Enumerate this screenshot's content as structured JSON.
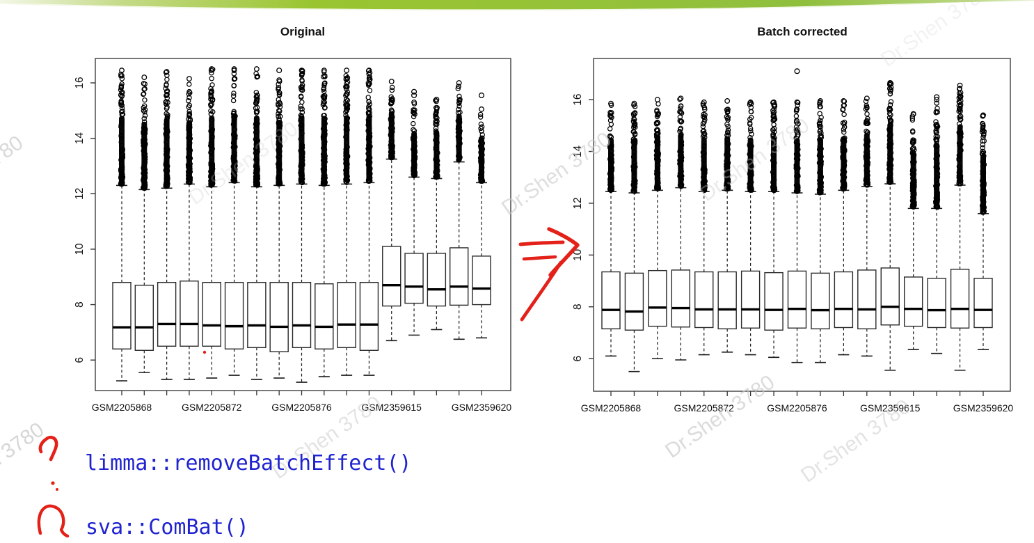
{
  "page": {
    "accent_green": "#96c23f",
    "annotation_red": "#e32119",
    "code_blue": "#1f23d0",
    "watermark_text": "Dr.Shen 3780"
  },
  "code": {
    "line1": "limma::removeBatchEffect()",
    "line2": "sva::ComBat()"
  },
  "chart_data": [
    {
      "type": "boxplot",
      "title": "Original",
      "grid": false,
      "y_ticks": [
        6,
        8,
        10,
        12,
        14,
        16
      ],
      "ylim": [
        4.9,
        16.88
      ],
      "x_labels": {
        "positions": [
          0,
          4,
          8,
          12,
          16
        ],
        "labels": [
          "GSM2205868",
          "GSM2205872",
          "GSM2205876",
          "GSM2359615",
          "GSM2359620"
        ]
      },
      "samples": [
        {
          "lo": 5.25,
          "q1": 6.4,
          "med": 7.18,
          "q3": 8.8,
          "hi": 12.3,
          "omin": 12.35,
          "omax": 16.45
        },
        {
          "lo": 5.55,
          "q1": 6.35,
          "med": 7.18,
          "q3": 8.7,
          "hi": 12.15,
          "omin": 12.2,
          "omax": 16.2
        },
        {
          "lo": 5.3,
          "q1": 6.5,
          "med": 7.3,
          "q3": 8.8,
          "hi": 12.2,
          "omin": 12.25,
          "omax": 16.4
        },
        {
          "lo": 5.3,
          "q1": 6.5,
          "med": 7.3,
          "q3": 8.85,
          "hi": 12.35,
          "omin": 12.4,
          "omax": 16.15
        },
        {
          "lo": 5.35,
          "q1": 6.5,
          "med": 7.25,
          "q3": 8.8,
          "hi": 12.25,
          "omin": 12.3,
          "omax": 16.5
        },
        {
          "lo": 5.45,
          "q1": 6.4,
          "med": 7.22,
          "q3": 8.8,
          "hi": 12.4,
          "omin": 12.45,
          "omax": 16.5
        },
        {
          "lo": 5.3,
          "q1": 6.45,
          "med": 7.25,
          "q3": 8.8,
          "hi": 12.25,
          "omin": 12.3,
          "omax": 16.5
        },
        {
          "lo": 5.35,
          "q1": 6.3,
          "med": 7.2,
          "q3": 8.8,
          "hi": 12.3,
          "omin": 12.35,
          "omax": 16.1,
          "extra": [
            16.45
          ]
        },
        {
          "lo": 5.2,
          "q1": 6.45,
          "med": 7.25,
          "q3": 8.8,
          "hi": 12.35,
          "omin": 12.4,
          "omax": 16.45
        },
        {
          "lo": 5.4,
          "q1": 6.4,
          "med": 7.2,
          "q3": 8.75,
          "hi": 12.3,
          "omin": 12.35,
          "omax": 16.45
        },
        {
          "lo": 5.45,
          "q1": 6.45,
          "med": 7.28,
          "q3": 8.8,
          "hi": 12.35,
          "omin": 12.4,
          "omax": 16.45
        },
        {
          "lo": 5.45,
          "q1": 6.35,
          "med": 7.28,
          "q3": 8.8,
          "hi": 12.4,
          "omin": 12.45,
          "omax": 16.45
        },
        {
          "lo": 6.7,
          "q1": 7.95,
          "med": 8.7,
          "q3": 10.1,
          "hi": 13.25,
          "omin": 13.3,
          "omax": 16.05
        },
        {
          "lo": 6.9,
          "q1": 8.05,
          "med": 8.65,
          "q3": 9.85,
          "hi": 12.6,
          "omin": 12.65,
          "omax": 15.3,
          "extra": [
            15.55,
            15.68
          ]
        },
        {
          "lo": 7.1,
          "q1": 7.95,
          "med": 8.55,
          "q3": 9.85,
          "hi": 12.55,
          "omin": 12.6,
          "omax": 15.4
        },
        {
          "lo": 6.75,
          "q1": 7.98,
          "med": 8.65,
          "q3": 10.05,
          "hi": 13.15,
          "omin": 13.2,
          "omax": 16.0
        },
        {
          "lo": 6.8,
          "q1": 8.0,
          "med": 8.58,
          "q3": 9.75,
          "hi": 12.4,
          "omin": 12.45,
          "omax": 15.05,
          "extra": [
            15.55
          ]
        }
      ]
    },
    {
      "type": "boxplot",
      "title": "Batch corrected",
      "grid": false,
      "y_ticks": [
        6,
        8,
        10,
        12,
        14,
        16
      ],
      "ylim": [
        4.74,
        17.59
      ],
      "x_labels": {
        "positions": [
          0,
          4,
          8,
          12,
          16
        ],
        "labels": [
          "GSM2205868",
          "GSM2205872",
          "GSM2205876",
          "GSM2359615",
          "GSM2359620"
        ]
      },
      "samples": [
        {
          "lo": 6.1,
          "q1": 7.15,
          "med": 7.88,
          "q3": 9.35,
          "hi": 12.45,
          "omin": 12.5,
          "omax": 15.85
        },
        {
          "lo": 5.5,
          "q1": 7.1,
          "med": 7.82,
          "q3": 9.3,
          "hi": 12.4,
          "omin": 12.45,
          "omax": 15.85
        },
        {
          "lo": 6.0,
          "q1": 7.25,
          "med": 7.97,
          "q3": 9.4,
          "hi": 12.5,
          "omin": 12.55,
          "omax": 16.0
        },
        {
          "lo": 5.95,
          "q1": 7.22,
          "med": 7.95,
          "q3": 9.42,
          "hi": 12.6,
          "omin": 12.65,
          "omax": 16.05
        },
        {
          "lo": 6.15,
          "q1": 7.2,
          "med": 7.9,
          "q3": 9.35,
          "hi": 12.45,
          "omin": 12.5,
          "omax": 15.9
        },
        {
          "lo": 6.25,
          "q1": 7.15,
          "med": 7.9,
          "q3": 9.35,
          "hi": 12.5,
          "omin": 12.55,
          "omax": 15.95
        },
        {
          "lo": 6.15,
          "q1": 7.18,
          "med": 7.9,
          "q3": 9.38,
          "hi": 12.45,
          "omin": 12.5,
          "omax": 15.9
        },
        {
          "lo": 6.05,
          "q1": 7.1,
          "med": 7.88,
          "q3": 9.32,
          "hi": 12.45,
          "omin": 12.5,
          "omax": 15.9
        },
        {
          "lo": 5.85,
          "q1": 7.18,
          "med": 7.92,
          "q3": 9.38,
          "hi": 12.4,
          "omin": 12.45,
          "omax": 15.9,
          "extra": [
            17.1
          ]
        },
        {
          "lo": 5.85,
          "q1": 7.15,
          "med": 7.87,
          "q3": 9.3,
          "hi": 12.35,
          "omin": 12.4,
          "omax": 15.95
        },
        {
          "lo": 6.15,
          "q1": 7.2,
          "med": 7.92,
          "q3": 9.35,
          "hi": 12.5,
          "omin": 12.55,
          "omax": 15.95
        },
        {
          "lo": 6.1,
          "q1": 7.15,
          "med": 7.9,
          "q3": 9.42,
          "hi": 12.65,
          "omin": 12.7,
          "omax": 16.05
        },
        {
          "lo": 5.55,
          "q1": 7.3,
          "med": 8.0,
          "q3": 9.5,
          "hi": 12.75,
          "omin": 12.8,
          "omax": 16.65
        },
        {
          "lo": 6.35,
          "q1": 7.25,
          "med": 7.92,
          "q3": 9.15,
          "hi": 11.8,
          "omin": 11.85,
          "omax": 15.45
        },
        {
          "lo": 6.2,
          "q1": 7.2,
          "med": 7.87,
          "q3": 9.1,
          "hi": 11.8,
          "omin": 11.85,
          "omax": 16.0,
          "extra": [
            16.1
          ]
        },
        {
          "lo": 5.55,
          "q1": 7.18,
          "med": 7.92,
          "q3": 9.45,
          "hi": 12.7,
          "omin": 12.75,
          "omax": 16.55
        },
        {
          "lo": 6.35,
          "q1": 7.2,
          "med": 7.88,
          "q3": 9.1,
          "hi": 11.6,
          "omin": 11.65,
          "omax": 15.4
        }
      ]
    }
  ]
}
